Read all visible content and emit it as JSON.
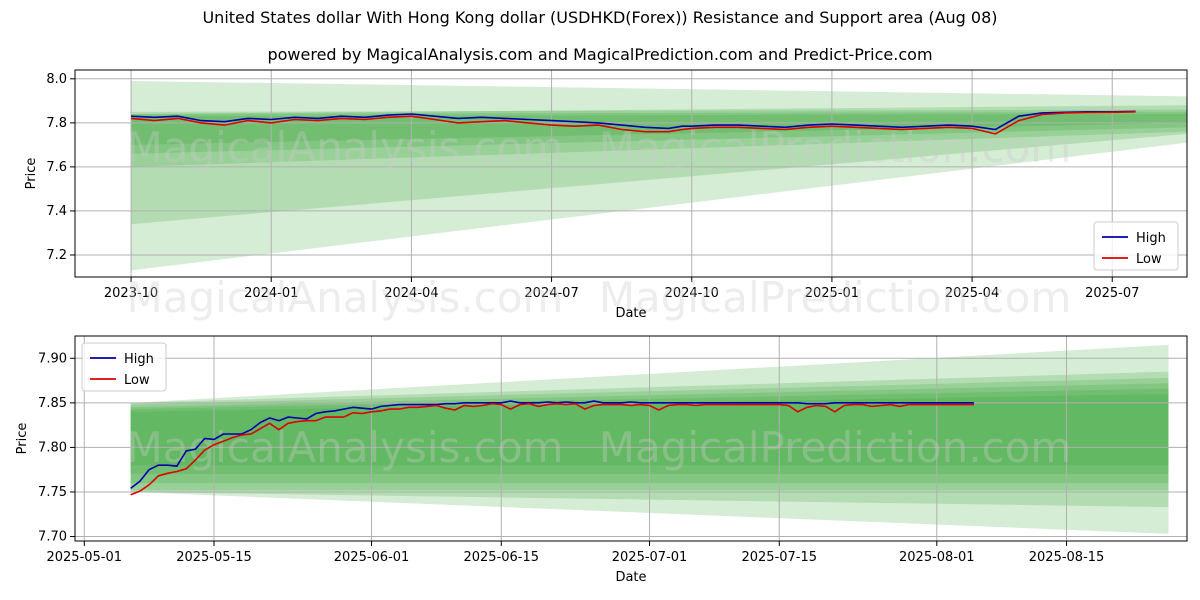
{
  "title": "United States dollar With Hong Kong dollar (USDHKD(Forex)) Resistance and Support area (Aug 08)",
  "subtitle": "powered by MagicalAnalysis.com and MagicalPrediction.com and Predict-Price.com",
  "watermarks": [
    "MagicalAnalysis.com",
    "MagicalPrediction.com"
  ],
  "colors": {
    "high": "#0000aa",
    "low": "#dd0000",
    "band": "#2ca02c"
  },
  "chart_data": [
    {
      "type": "line",
      "title": "",
      "xlabel": "Date",
      "ylabel": "Price",
      "grid": true,
      "legend_position": "bottom-right",
      "x_ticks": [
        "2023-10",
        "2024-01",
        "2024-04",
        "2024-07",
        "2024-10",
        "2025-01",
        "2025-04",
        "2025-07"
      ],
      "y_ticks": [
        "7.2",
        "7.4",
        "7.6",
        "7.8",
        "8.0"
      ],
      "ylim": [
        7.1,
        8.04
      ],
      "xlim_months": [
        -1.2,
        22.6
      ],
      "x_month_origin": "2023-10",
      "series": [
        {
          "name": "High",
          "color": "#0000aa",
          "x_months": [
            0.0,
            0.5,
            1.0,
            1.5,
            2.0,
            2.5,
            3.0,
            3.5,
            4.0,
            4.5,
            5.0,
            5.5,
            6.0,
            6.5,
            7.0,
            7.5,
            8.0,
            8.5,
            9.0,
            9.5,
            10.0,
            10.5,
            11.0,
            11.5,
            11.8,
            12.0,
            12.5,
            13.0,
            13.5,
            14.0,
            14.5,
            15.0,
            15.5,
            16.0,
            16.5,
            17.0,
            17.5,
            18.0,
            18.5,
            19.0,
            19.5,
            20.0,
            20.5,
            21.0,
            21.5
          ],
          "values": [
            7.83,
            7.825,
            7.83,
            7.81,
            7.805,
            7.82,
            7.815,
            7.825,
            7.82,
            7.83,
            7.825,
            7.835,
            7.84,
            7.83,
            7.82,
            7.825,
            7.82,
            7.815,
            7.81,
            7.805,
            7.8,
            7.79,
            7.78,
            7.775,
            7.785,
            7.785,
            7.79,
            7.79,
            7.785,
            7.78,
            7.79,
            7.795,
            7.79,
            7.785,
            7.78,
            7.785,
            7.79,
            7.785,
            7.77,
            7.83,
            7.845,
            7.848,
            7.85,
            7.85,
            7.852
          ]
        },
        {
          "name": "Low",
          "color": "#dd0000",
          "x_months": [
            0.0,
            0.5,
            1.0,
            1.5,
            2.0,
            2.5,
            3.0,
            3.5,
            4.0,
            4.5,
            5.0,
            5.5,
            6.0,
            6.5,
            7.0,
            7.5,
            8.0,
            8.5,
            9.0,
            9.5,
            10.0,
            10.5,
            11.0,
            11.5,
            11.8,
            12.0,
            12.5,
            13.0,
            13.5,
            14.0,
            14.5,
            15.0,
            15.5,
            16.0,
            16.5,
            17.0,
            17.5,
            18.0,
            18.5,
            19.0,
            19.5,
            20.0,
            20.5,
            21.0,
            21.5
          ],
          "values": [
            7.82,
            7.81,
            7.82,
            7.8,
            7.79,
            7.81,
            7.8,
            7.815,
            7.81,
            7.82,
            7.815,
            7.825,
            7.83,
            7.815,
            7.8,
            7.805,
            7.81,
            7.8,
            7.79,
            7.785,
            7.79,
            7.77,
            7.76,
            7.76,
            7.77,
            7.775,
            7.78,
            7.78,
            7.775,
            7.77,
            7.78,
            7.785,
            7.78,
            7.775,
            7.77,
            7.775,
            7.78,
            7.775,
            7.75,
            7.81,
            7.838,
            7.845,
            7.847,
            7.848,
            7.85
          ]
        }
      ],
      "bands": [
        {
          "x_months": [
            0.0,
            22.6
          ],
          "upper": [
            7.99,
            7.92
          ],
          "lower": [
            7.13,
            7.71
          ]
        },
        {
          "x_months": [
            0.0,
            22.6
          ],
          "upper": [
            7.84,
            7.88
          ],
          "lower": [
            7.34,
            7.75
          ]
        },
        {
          "x_months": [
            0.0,
            22.6
          ],
          "upper": [
            7.85,
            7.86
          ],
          "lower": [
            7.6,
            7.76
          ]
        },
        {
          "x_months": [
            0.0,
            22.6
          ],
          "upper": [
            7.84,
            7.85
          ],
          "lower": [
            7.66,
            7.78
          ]
        },
        {
          "x_months": [
            0.0,
            22.6
          ],
          "upper": [
            7.83,
            7.84
          ],
          "lower": [
            7.7,
            7.8
          ]
        }
      ]
    },
    {
      "type": "line",
      "title": "",
      "xlabel": "Date",
      "ylabel": "Price",
      "grid": true,
      "legend_position": "top-left",
      "x_ticks": [
        "2025-05-01",
        "2025-05-15",
        "2025-06-01",
        "2025-06-15",
        "2025-07-01",
        "2025-07-15",
        "2025-08-01",
        "2025-08-15"
      ],
      "x_tick_days": [
        0,
        14,
        31,
        45,
        61,
        75,
        92,
        106
      ],
      "y_ticks": [
        "7.70",
        "7.75",
        "7.80",
        "7.85",
        "7.90"
      ],
      "ylim": [
        7.695,
        7.925
      ],
      "xlim_days": [
        -1,
        119
      ],
      "x_day_origin": "2025-05-01",
      "series": [
        {
          "name": "High",
          "color": "#0000aa",
          "x_days": [
            5,
            6,
            7,
            8,
            9,
            10,
            11,
            12,
            13,
            14,
            15,
            16,
            17,
            18,
            19,
            20,
            21,
            22,
            23,
            24,
            25,
            26,
            27,
            28,
            29,
            30,
            31,
            32,
            33,
            34,
            35,
            36,
            37,
            38,
            39,
            40,
            41,
            42,
            43,
            44,
            45,
            46,
            47,
            48,
            49,
            50,
            51,
            52,
            53,
            54,
            55,
            56,
            57,
            58,
            59,
            60,
            61,
            62,
            63,
            64,
            65,
            66,
            67,
            68,
            69,
            70,
            71,
            72,
            73,
            74,
            75,
            76,
            77,
            78,
            79,
            80,
            81,
            82,
            83,
            84,
            85,
            86,
            87,
            88,
            89,
            90,
            91,
            92,
            93,
            94,
            95,
            96
          ],
          "values": [
            7.754,
            7.762,
            7.775,
            7.78,
            7.78,
            7.779,
            7.796,
            7.798,
            7.81,
            7.809,
            7.815,
            7.815,
            7.815,
            7.82,
            7.828,
            7.833,
            7.83,
            7.834,
            7.833,
            7.832,
            7.838,
            7.84,
            7.841,
            7.843,
            7.845,
            7.844,
            7.843,
            7.846,
            7.847,
            7.848,
            7.848,
            7.848,
            7.848,
            7.848,
            7.849,
            7.849,
            7.85,
            7.85,
            7.85,
            7.85,
            7.85,
            7.852,
            7.85,
            7.85,
            7.85,
            7.851,
            7.85,
            7.851,
            7.85,
            7.85,
            7.852,
            7.85,
            7.85,
            7.85,
            7.851,
            7.85,
            7.85,
            7.85,
            7.85,
            7.85,
            7.85,
            7.85,
            7.85,
            7.85,
            7.85,
            7.85,
            7.85,
            7.85,
            7.85,
            7.85,
            7.85,
            7.85,
            7.85,
            7.849,
            7.849,
            7.849,
            7.85,
            7.85,
            7.85,
            7.85,
            7.85,
            7.85,
            7.85,
            7.85,
            7.85,
            7.85,
            7.85,
            7.85,
            7.85,
            7.85,
            7.85,
            7.85
          ]
        },
        {
          "name": "Low",
          "color": "#dd0000",
          "x_days": [
            5,
            6,
            7,
            8,
            9,
            10,
            11,
            12,
            13,
            14,
            15,
            16,
            17,
            18,
            19,
            20,
            21,
            22,
            23,
            24,
            25,
            26,
            27,
            28,
            29,
            30,
            31,
            32,
            33,
            34,
            35,
            36,
            37,
            38,
            39,
            40,
            41,
            42,
            43,
            44,
            45,
            46,
            47,
            48,
            49,
            50,
            51,
            52,
            53,
            54,
            55,
            56,
            57,
            58,
            59,
            60,
            61,
            62,
            63,
            64,
            65,
            66,
            67,
            68,
            69,
            70,
            71,
            72,
            73,
            74,
            75,
            76,
            77,
            78,
            79,
            80,
            81,
            82,
            83,
            84,
            85,
            86,
            87,
            88,
            89,
            90,
            91,
            92,
            93,
            94,
            95,
            96
          ],
          "values": [
            7.747,
            7.751,
            7.758,
            7.768,
            7.771,
            7.773,
            7.776,
            7.786,
            7.797,
            7.803,
            7.807,
            7.811,
            7.814,
            7.815,
            7.821,
            7.827,
            7.82,
            7.827,
            7.829,
            7.83,
            7.83,
            7.834,
            7.834,
            7.834,
            7.839,
            7.838,
            7.84,
            7.841,
            7.843,
            7.843,
            7.845,
            7.845,
            7.846,
            7.847,
            7.844,
            7.842,
            7.847,
            7.846,
            7.847,
            7.849,
            7.848,
            7.843,
            7.848,
            7.849,
            7.846,
            7.848,
            7.849,
            7.848,
            7.849,
            7.843,
            7.847,
            7.848,
            7.848,
            7.848,
            7.847,
            7.848,
            7.847,
            7.842,
            7.847,
            7.848,
            7.848,
            7.847,
            7.848,
            7.848,
            7.848,
            7.848,
            7.848,
            7.848,
            7.848,
            7.848,
            7.848,
            7.847,
            7.84,
            7.845,
            7.847,
            7.846,
            7.84,
            7.847,
            7.848,
            7.848,
            7.846,
            7.847,
            7.848,
            7.846,
            7.848,
            7.848,
            7.848,
            7.848,
            7.848,
            7.848,
            7.848,
            7.848
          ]
        }
      ],
      "bands": [
        {
          "x_days": [
            5,
            117
          ],
          "upper": [
            7.85,
            7.915
          ],
          "lower": [
            7.75,
            7.703
          ]
        },
        {
          "x_days": [
            5,
            117
          ],
          "upper": [
            7.85,
            7.885
          ],
          "lower": [
            7.75,
            7.733
          ]
        },
        {
          "x_days": [
            5,
            117
          ],
          "upper": [
            7.848,
            7.878
          ],
          "lower": [
            7.752,
            7.752
          ]
        },
        {
          "x_days": [
            5,
            117
          ],
          "upper": [
            7.845,
            7.872
          ],
          "lower": [
            7.76,
            7.76
          ]
        },
        {
          "x_days": [
            5,
            117
          ],
          "upper": [
            7.843,
            7.866
          ],
          "lower": [
            7.77,
            7.77
          ]
        },
        {
          "x_days": [
            5,
            117
          ],
          "upper": [
            7.84,
            7.86
          ],
          "lower": [
            7.78,
            7.78
          ]
        }
      ]
    }
  ]
}
